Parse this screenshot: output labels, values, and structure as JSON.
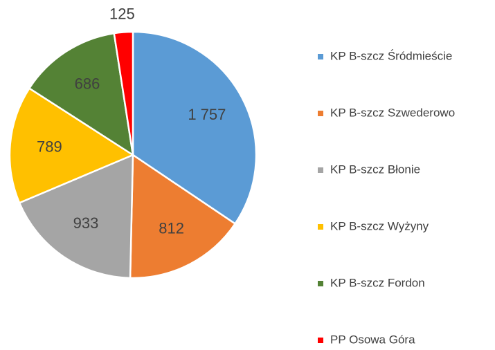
{
  "chart_data": {
    "type": "pie",
    "categories": [
      "KP B-szcz Śródmieście",
      "KP B-szcz Szwederowo",
      "KP B-szcz Błonie",
      "KP B-szcz Wyżyny",
      "KP B-szcz Fordon",
      "PP Osowa Góra"
    ],
    "values": [
      1757,
      812,
      933,
      789,
      686,
      125
    ],
    "value_labels": [
      "1 757",
      "812",
      "933",
      "789",
      "686",
      "125"
    ],
    "colors": [
      "#5b9bd5",
      "#ed7d31",
      "#a5a5a5",
      "#ffc000",
      "#548235",
      "#ff0000"
    ],
    "legend": "right"
  }
}
